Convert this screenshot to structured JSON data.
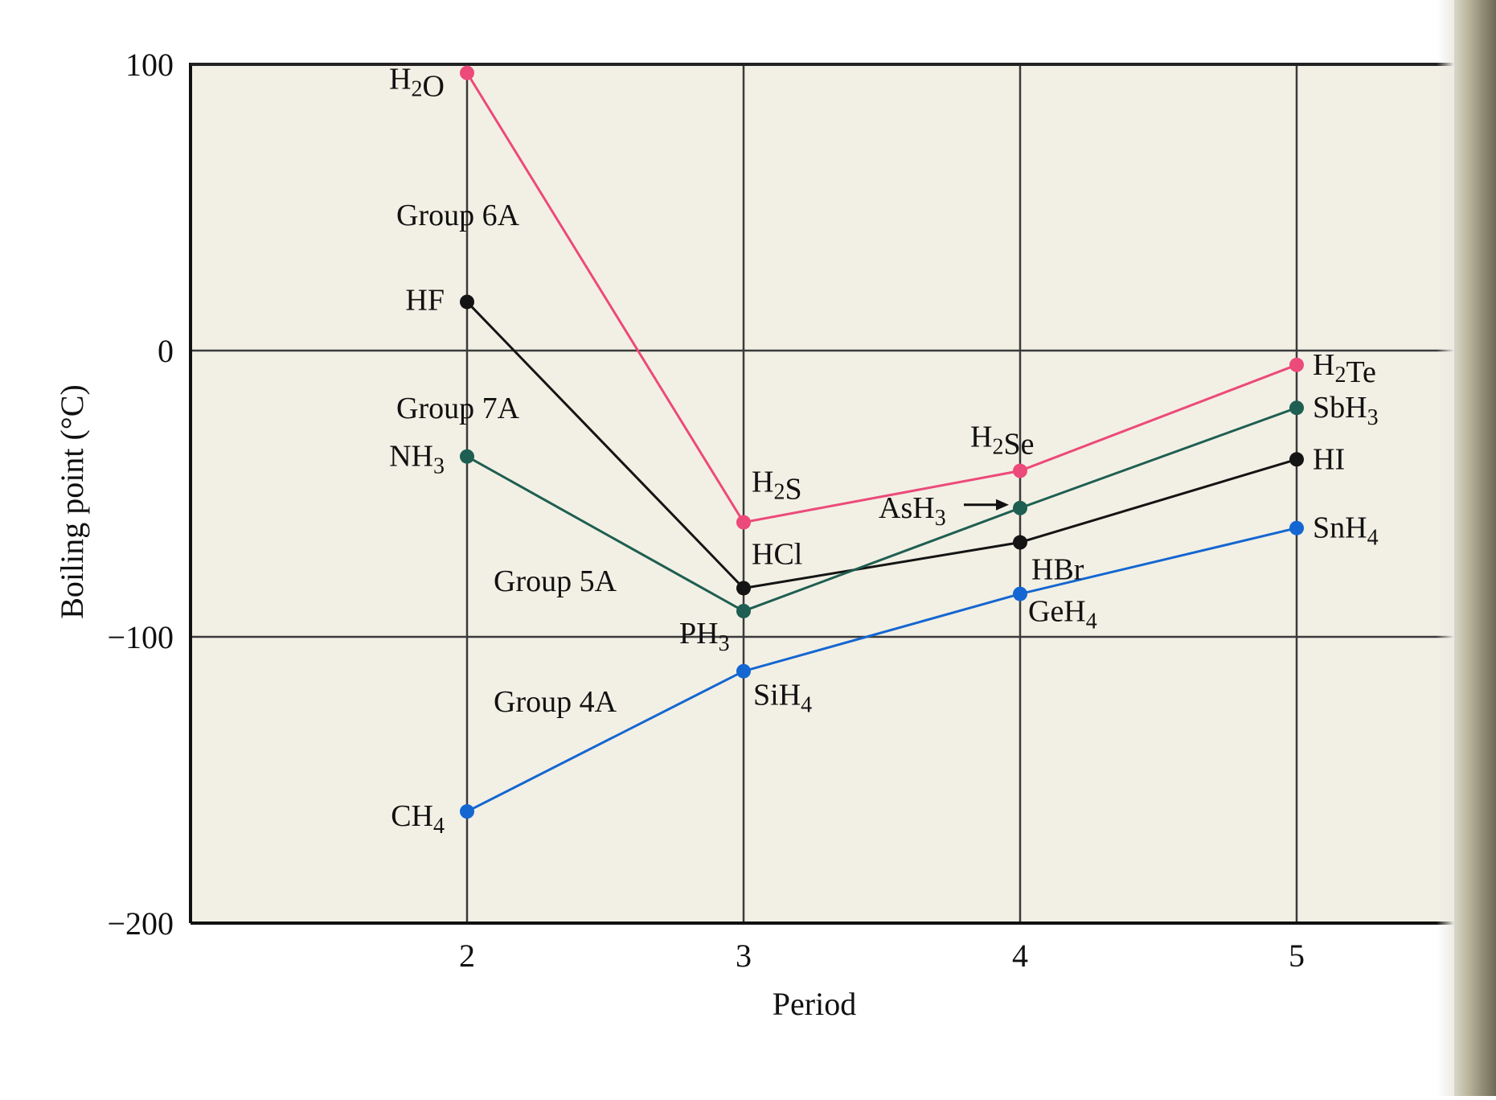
{
  "chart_data": {
    "type": "line",
    "title": "",
    "xlabel": "Period",
    "ylabel": "Boiling point (°C)",
    "x": [
      2,
      3,
      4,
      5
    ],
    "xlim": [
      1,
      5.5
    ],
    "ylim": [
      -200,
      100
    ],
    "x_ticks": [
      "2",
      "3",
      "4",
      "5"
    ],
    "y_ticks": [
      "100",
      "0",
      "−100",
      "−200"
    ],
    "grid": true,
    "series": [
      {
        "name": "Group 6A",
        "color": "#ec4a7a",
        "values": [
          97,
          -60,
          -42,
          -5
        ],
        "labels": [
          "H₂O",
          "H₂S",
          "H₂Se",
          "H₂Te"
        ]
      },
      {
        "name": "Group 7A",
        "color": "#141414",
        "values": [
          17,
          -83,
          -67,
          -38
        ],
        "labels": [
          "HF",
          "HCl",
          "HBr",
          "HI"
        ]
      },
      {
        "name": "Group 5A",
        "color": "#1f5e52",
        "values": [
          -37,
          -91,
          -55,
          -20
        ],
        "labels": [
          "NH₃",
          "PH₃",
          "AsH₃",
          "SbH₃"
        ]
      },
      {
        "name": "Group 4A",
        "color": "#1466d2",
        "values": [
          -161,
          -112,
          -85,
          -62
        ],
        "labels": [
          "CH₄",
          "SiH₄",
          "GeH₄",
          "SnH₄"
        ]
      }
    ],
    "arrow_label": "AsH₃",
    "background": "#f2f0e4",
    "grid_color": "#3a3a3a"
  }
}
